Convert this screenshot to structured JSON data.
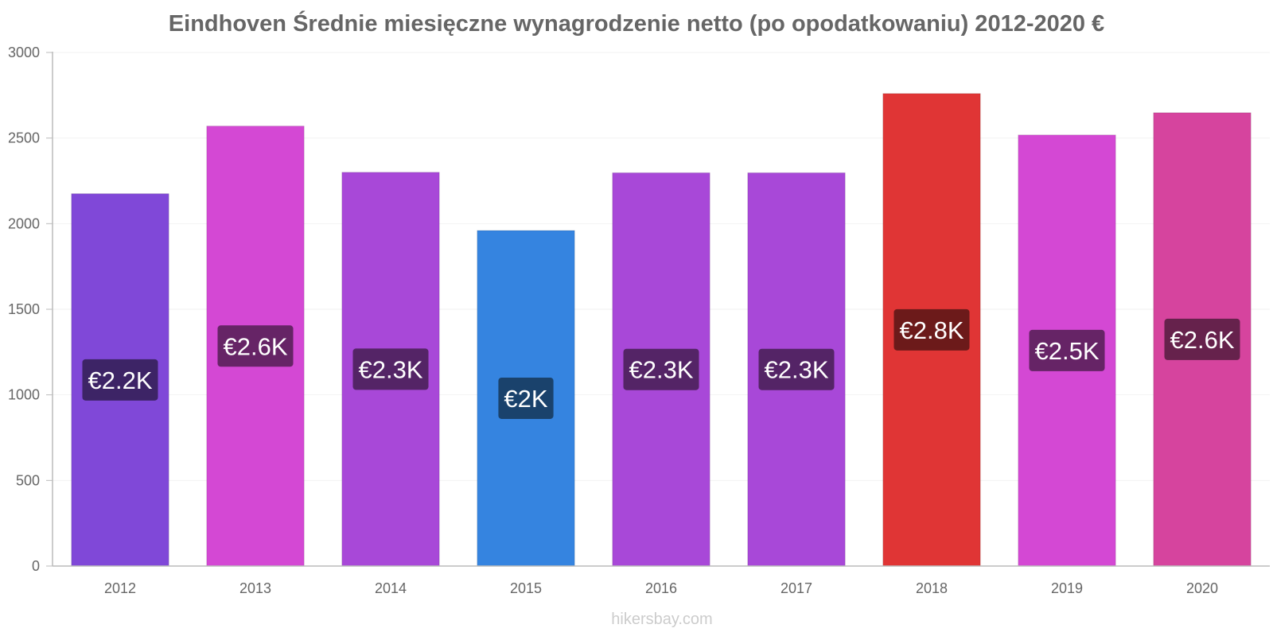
{
  "chart_data": {
    "type": "bar",
    "title": "Eindhoven Średnie miesięczne wynagrodzenie netto (po opodatkowaniu) 2012-2020 €",
    "xlabel": "",
    "ylabel": "",
    "categories": [
      "2012",
      "2013",
      "2014",
      "2015",
      "2016",
      "2017",
      "2018",
      "2019",
      "2020"
    ],
    "values": [
      2175,
      2570,
      2300,
      1960,
      2297,
      2297,
      2760,
      2518,
      2648
    ],
    "data_labels": [
      "€2.2K",
      "€2.6K",
      "€2.3K",
      "€2K",
      "€2.3K",
      "€2.3K",
      "€2.8K",
      "€2.5K",
      "€2.6K"
    ],
    "bar_colors": [
      "#8048d8",
      "#d448d4",
      "#a848d8",
      "#3584e0",
      "#a848d8",
      "#a848d8",
      "#e03535",
      "#d448d4",
      "#d6449e"
    ],
    "label_bg_colors": [
      "#3d2466",
      "#662466",
      "#542466",
      "#1a426c",
      "#542466",
      "#542466",
      "#6c1a1a",
      "#662466",
      "#66224c"
    ],
    "ylim": [
      0,
      3000
    ],
    "yticks": [
      0,
      500,
      1000,
      1500,
      2000,
      2500,
      3000
    ],
    "grid": true,
    "legend": "none"
  },
  "watermark": "hikersbay.com"
}
